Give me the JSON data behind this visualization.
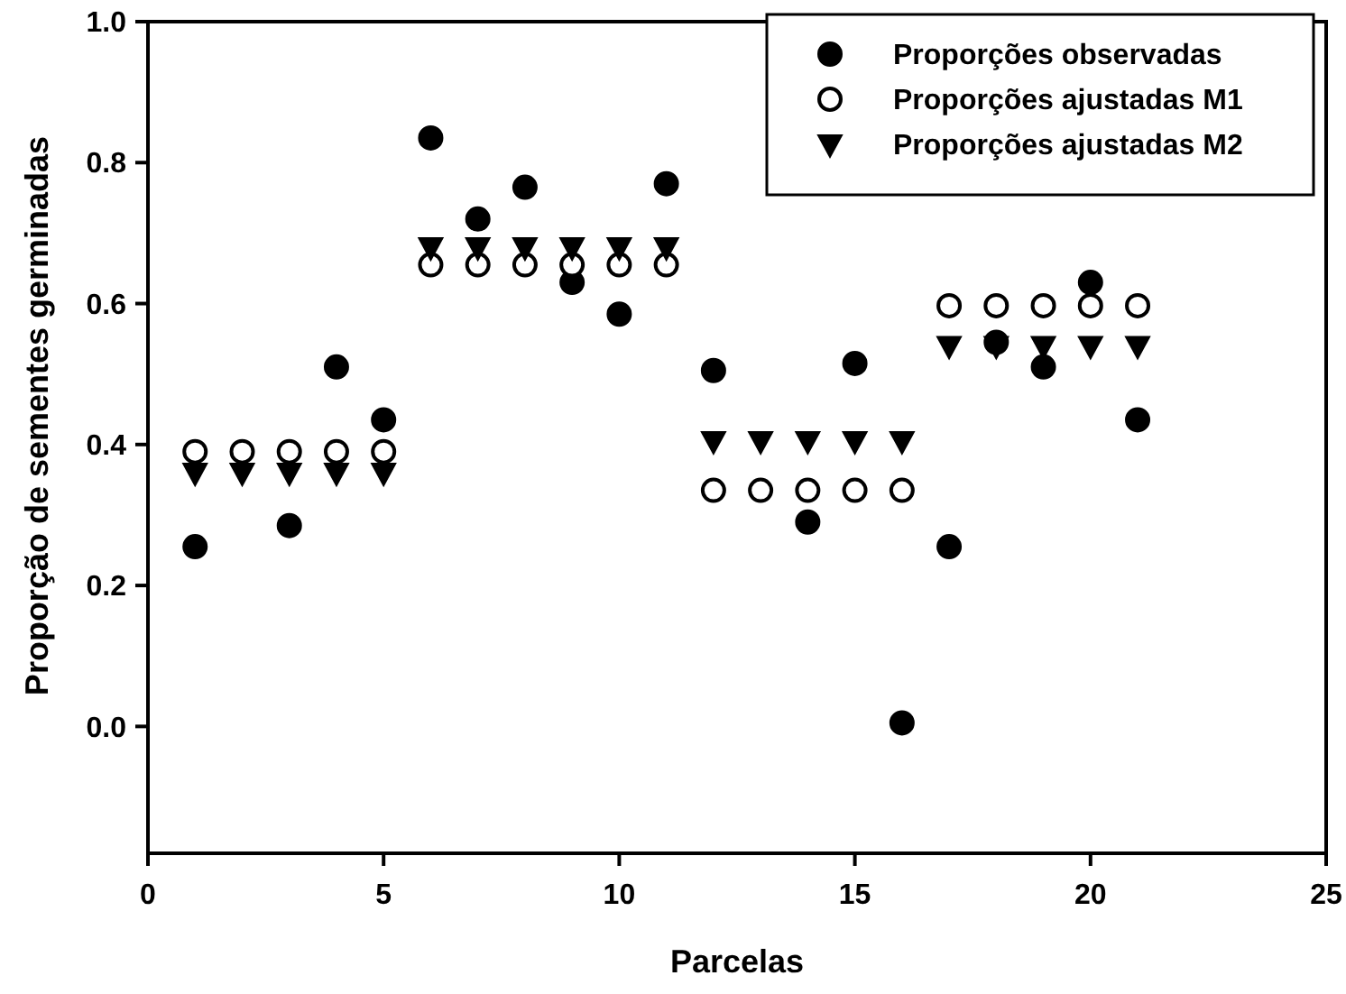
{
  "chart_data": {
    "type": "scatter",
    "xlabel": "Parcelas",
    "ylabel": "Proporção de sementes germinadas",
    "x": [
      1,
      2,
      3,
      4,
      5,
      6,
      7,
      8,
      9,
      10,
      11,
      12,
      13,
      14,
      15,
      16,
      17,
      18,
      19,
      20,
      21
    ],
    "xlim": [
      0,
      25
    ],
    "xticks": [
      0,
      5,
      10,
      15,
      20,
      25
    ],
    "ylim": [
      -0.18,
      1.0
    ],
    "yticks": [
      {
        "value": 0,
        "label": "0.0"
      },
      {
        "value": 0.2,
        "label": "0.2"
      },
      {
        "value": 0.4,
        "label": "0.4"
      },
      {
        "value": 0.6,
        "label": "0.6"
      },
      {
        "value": 0.8,
        "label": "0.8"
      },
      {
        "value": 1,
        "label": "1.0"
      }
    ],
    "legend": "top right",
    "grid": false,
    "series": [
      {
        "name": "Proporções observadas",
        "color": "#000000",
        "marker": "circle",
        "values": [
          0.255,
          null,
          0.285,
          0.51,
          0.435,
          0.835,
          0.72,
          0.765,
          0.63,
          0.585,
          0.77,
          0.505,
          null,
          0.29,
          0.515,
          0.005,
          0.255,
          0.545,
          0.51,
          0.63,
          0.435
        ]
      },
      {
        "name": "Proporções ajustadas M1",
        "color": "#ffffff",
        "marker": "circle",
        "values": [
          0.39,
          0.39,
          0.39,
          0.39,
          0.39,
          0.655,
          0.655,
          0.655,
          0.655,
          0.655,
          0.655,
          0.335,
          0.335,
          0.335,
          0.335,
          0.335,
          0.597,
          0.597,
          0.597,
          0.597,
          0.597
        ]
      },
      {
        "name": "Proporções ajustadas M2",
        "color": "#000000",
        "marker": "triangle",
        "values": [
          0.36,
          0.36,
          0.36,
          0.36,
          0.36,
          0.68,
          0.68,
          0.68,
          0.68,
          0.68,
          0.68,
          0.405,
          0.405,
          0.405,
          0.405,
          0.405,
          0.54,
          0.54,
          0.54,
          0.54,
          0.54
        ]
      }
    ]
  }
}
